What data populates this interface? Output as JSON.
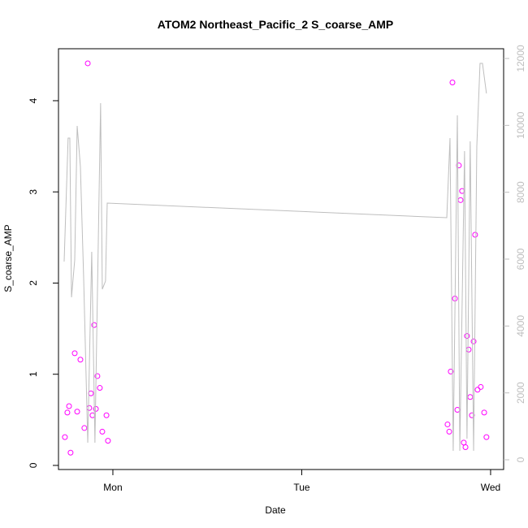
{
  "chart_data": {
    "type": "scatter",
    "title": "ATOM2 Northeast_Pacific_2 S_coarse_AMP",
    "xlabel": "Date",
    "ylabel": "S_coarse_AMP",
    "xlim": [
      0.712,
      3.069
    ],
    "xticks": [
      {
        "value": 1,
        "label": "Mon"
      },
      {
        "value": 2,
        "label": "Tue"
      },
      {
        "value": 3,
        "label": "Wed"
      }
    ],
    "ylim": [
      -0.045,
      4.57
    ],
    "yticks": [
      0,
      1,
      2,
      3,
      4
    ],
    "y2lim": [
      -291,
      12291
    ],
    "y2ticks": [
      0,
      2000,
      4000,
      6000,
      8000,
      10000,
      12000
    ],
    "series": [
      {
        "type": "scatter",
        "color": "#ff00ff",
        "x": [
          0.746,
          0.759,
          0.768,
          0.776,
          0.798,
          0.811,
          0.828,
          0.849,
          0.867,
          0.875,
          0.884,
          0.892,
          0.901,
          0.91,
          0.918,
          0.931,
          0.944,
          0.966,
          0.974,
          2.772,
          2.781,
          2.789,
          2.798,
          2.811,
          2.824,
          2.832,
          2.841,
          2.849,
          2.858,
          2.867,
          2.875,
          2.884,
          2.892,
          2.901,
          2.91,
          2.918,
          2.931,
          2.948,
          2.966,
          2.978
        ],
        "values": [
          0.31,
          0.58,
          0.65,
          0.14,
          1.23,
          0.59,
          1.16,
          0.41,
          4.41,
          0.63,
          0.79,
          0.55,
          1.54,
          0.62,
          0.98,
          0.85,
          0.37,
          0.55,
          0.27,
          0.45,
          0.37,
          1.03,
          4.2,
          1.83,
          0.61,
          3.29,
          2.91,
          3.01,
          0.25,
          0.2,
          1.42,
          1.27,
          0.75,
          0.55,
          1.36,
          2.53,
          0.83,
          0.86,
          0.58,
          0.31
        ]
      },
      {
        "type": "line",
        "color": "#bebebe",
        "axis": "y2",
        "x": [
          0.742,
          0.763,
          0.772,
          0.781,
          0.798,
          0.811,
          0.828,
          0.845,
          0.867,
          0.888,
          0.905,
          0.935,
          0.944,
          0.961,
          0.97,
          2.768,
          2.785,
          2.802,
          2.824,
          2.837,
          2.862,
          2.875,
          2.892,
          2.91,
          2.927,
          2.944,
          2.957,
          2.978
        ],
        "values": [
          5927,
          9619,
          9619,
          4858,
          5975,
          9983,
          8768,
          5489,
          510,
          6218,
          510,
          10663,
          5101,
          5344,
          7675,
          7238,
          9619,
          267,
          10299,
          267,
          9230,
          632,
          9522,
          267,
          9376,
          11853,
          11853,
          10955
        ]
      }
    ]
  }
}
